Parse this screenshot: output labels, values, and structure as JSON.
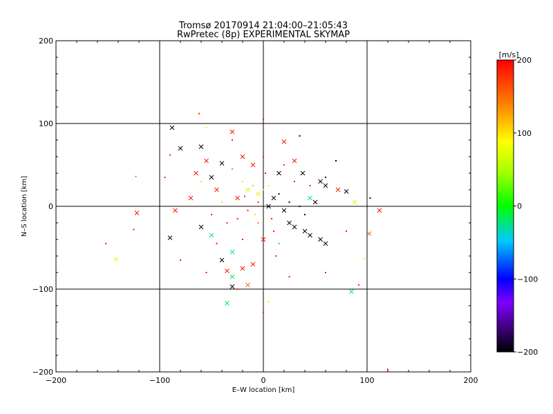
{
  "chart_data": {
    "type": "scatter",
    "title": "Tromsø 20170914 21:04:00–21:05:43",
    "subtitle": "RwPretec (8p) EXPERIMENTAL SKYMAP",
    "xlabel": "E–W location [km]",
    "ylabel": "N–S location [km]",
    "xlim": [
      -200,
      200
    ],
    "ylim": [
      -200,
      200
    ],
    "xticks": [
      "−200",
      "−100",
      "0",
      "100",
      "200"
    ],
    "yticks": [
      "−200",
      "−100",
      "0",
      "100",
      "200"
    ],
    "grid": true,
    "grid_lines": [
      -100,
      0,
      100
    ],
    "colorbar": {
      "label": "[m/s]",
      "min": -200,
      "max": 200,
      "ticks": [
        "200",
        "100",
        "0",
        "−100",
        "−200"
      ],
      "colormap": "rainbow_black_to_red"
    },
    "series": [
      {
        "marker": "x",
        "points": [
          {
            "x": -88,
            "y": 95,
            "v": -200
          },
          {
            "x": -30,
            "y": 90,
            "v": 190
          },
          {
            "x": -80,
            "y": 70,
            "v": -200
          },
          {
            "x": -60,
            "y": 72,
            "v": -200
          },
          {
            "x": -55,
            "y": 55,
            "v": 190
          },
          {
            "x": -40,
            "y": 52,
            "v": -200
          },
          {
            "x": -20,
            "y": 60,
            "v": 190
          },
          {
            "x": 20,
            "y": 78,
            "v": 190
          },
          {
            "x": 15,
            "y": 40,
            "v": -200
          },
          {
            "x": 38,
            "y": 40,
            "v": -200
          },
          {
            "x": 55,
            "y": 30,
            "v": -200
          },
          {
            "x": 60,
            "y": 25,
            "v": -200
          },
          {
            "x": 72,
            "y": 20,
            "v": 190
          },
          {
            "x": 80,
            "y": 18,
            "v": -200
          },
          {
            "x": 88,
            "y": 5,
            "v": 70
          },
          {
            "x": 112,
            "y": -5,
            "v": 190
          },
          {
            "x": 102,
            "y": -33,
            "v": 150
          },
          {
            "x": 85,
            "y": -103,
            "v": -20
          },
          {
            "x": -122,
            "y": -8,
            "v": 190
          },
          {
            "x": -142,
            "y": -64,
            "v": 70
          },
          {
            "x": -90,
            "y": -38,
            "v": -200
          },
          {
            "x": -60,
            "y": -25,
            "v": -200
          },
          {
            "x": -50,
            "y": -35,
            "v": -20
          },
          {
            "x": -30,
            "y": -55,
            "v": -20
          },
          {
            "x": -40,
            "y": -65,
            "v": -200
          },
          {
            "x": -35,
            "y": -78,
            "v": 190
          },
          {
            "x": -30,
            "y": -85,
            "v": -20
          },
          {
            "x": -20,
            "y": -75,
            "v": 190
          },
          {
            "x": -15,
            "y": -95,
            "v": 150
          },
          {
            "x": -30,
            "y": -97,
            "v": -200
          },
          {
            "x": -35,
            "y": -117,
            "v": -20
          },
          {
            "x": -10,
            "y": -70,
            "v": 190
          },
          {
            "x": 0,
            "y": -40,
            "v": 190
          },
          {
            "x": 5,
            "y": 0,
            "v": -200
          },
          {
            "x": 10,
            "y": 10,
            "v": -200
          },
          {
            "x": 20,
            "y": -5,
            "v": -200
          },
          {
            "x": 25,
            "y": -20,
            "v": -200
          },
          {
            "x": 30,
            "y": -25,
            "v": -200
          },
          {
            "x": 40,
            "y": -30,
            "v": -200
          },
          {
            "x": 45,
            "y": -35,
            "v": -200
          },
          {
            "x": 55,
            "y": -40,
            "v": -200
          },
          {
            "x": 60,
            "y": -45,
            "v": -200
          },
          {
            "x": -15,
            "y": 20,
            "v": 70
          },
          {
            "x": -5,
            "y": 15,
            "v": 100
          },
          {
            "x": -25,
            "y": 10,
            "v": 190
          },
          {
            "x": -45,
            "y": 20,
            "v": 190
          },
          {
            "x": -70,
            "y": 10,
            "v": 190
          },
          {
            "x": -85,
            "y": -5,
            "v": 190
          },
          {
            "x": -65,
            "y": 40,
            "v": 190
          },
          {
            "x": -50,
            "y": 35,
            "v": -200
          },
          {
            "x": -10,
            "y": 50,
            "v": 190
          },
          {
            "x": 30,
            "y": 55,
            "v": 190
          },
          {
            "x": 45,
            "y": 10,
            "v": -20
          },
          {
            "x": 50,
            "y": 5,
            "v": -200
          }
        ]
      },
      {
        "marker": "dot",
        "points": [
          {
            "x": -62,
            "y": 112,
            "v": 190
          },
          {
            "x": -90,
            "y": 62,
            "v": 190
          },
          {
            "x": -95,
            "y": 35,
            "v": 190
          },
          {
            "x": -152,
            "y": -45,
            "v": 190
          },
          {
            "x": -125,
            "y": -28,
            "v": 190
          },
          {
            "x": -123,
            "y": 36,
            "v": 150
          },
          {
            "x": -80,
            "y": -65,
            "v": 190
          },
          {
            "x": -55,
            "y": -80,
            "v": 190
          },
          {
            "x": -25,
            "y": -100,
            "v": 190
          },
          {
            "x": 0,
            "y": -128,
            "v": 190
          },
          {
            "x": 5,
            "y": -115,
            "v": 60
          },
          {
            "x": 25,
            "y": -85,
            "v": 190
          },
          {
            "x": 60,
            "y": -80,
            "v": 190
          },
          {
            "x": 92,
            "y": -95,
            "v": 190
          },
          {
            "x": 97,
            "y": -63,
            "v": 60
          },
          {
            "x": 103,
            "y": 10,
            "v": -200
          },
          {
            "x": 70,
            "y": 55,
            "v": -200
          },
          {
            "x": 35,
            "y": 85,
            "v": -200
          },
          {
            "x": 0,
            "y": 105,
            "v": 190
          },
          {
            "x": -30,
            "y": 80,
            "v": 190
          },
          {
            "x": -55,
            "y": 95,
            "v": 60
          },
          {
            "x": 120,
            "y": -197,
            "v": 190
          },
          {
            "x": -20,
            "y": 30,
            "v": 60
          },
          {
            "x": -10,
            "y": 25,
            "v": 40
          },
          {
            "x": 0,
            "y": 20,
            "v": 60
          },
          {
            "x": 5,
            "y": 25,
            "v": 100
          },
          {
            "x": -5,
            "y": 5,
            "v": 190
          },
          {
            "x": -15,
            "y": -5,
            "v": 190
          },
          {
            "x": -25,
            "y": -15,
            "v": 190
          },
          {
            "x": -35,
            "y": -20,
            "v": 190
          },
          {
            "x": -5,
            "y": -20,
            "v": 150
          },
          {
            "x": 10,
            "y": -30,
            "v": 190
          },
          {
            "x": 15,
            "y": 15,
            "v": -200
          },
          {
            "x": 25,
            "y": 5,
            "v": -200
          },
          {
            "x": 35,
            "y": 0,
            "v": -200
          },
          {
            "x": 40,
            "y": -10,
            "v": -200
          },
          {
            "x": 15,
            "y": -45,
            "v": -20
          },
          {
            "x": -40,
            "y": 5,
            "v": 60
          },
          {
            "x": -60,
            "y": 30,
            "v": 60
          },
          {
            "x": -20,
            "y": -40,
            "v": 190
          },
          {
            "x": -45,
            "y": -45,
            "v": 190
          },
          {
            "x": 30,
            "y": 30,
            "v": 190
          },
          {
            "x": 45,
            "y": 25,
            "v": 190
          },
          {
            "x": 60,
            "y": 35,
            "v": -200
          },
          {
            "x": 80,
            "y": -30,
            "v": 190
          },
          {
            "x": 20,
            "y": 50,
            "v": 190
          },
          {
            "x": -30,
            "y": 45,
            "v": -20
          },
          {
            "x": 0,
            "y": 60,
            "v": 190
          },
          {
            "x": -8,
            "y": -10,
            "v": 100
          },
          {
            "x": 8,
            "y": -15,
            "v": 190
          },
          {
            "x": -18,
            "y": 12,
            "v": 190
          },
          {
            "x": 2,
            "y": 40,
            "v": 190
          },
          {
            "x": 12,
            "y": -60,
            "v": 190
          },
          {
            "x": -50,
            "y": -10,
            "v": 190
          }
        ]
      }
    ]
  }
}
